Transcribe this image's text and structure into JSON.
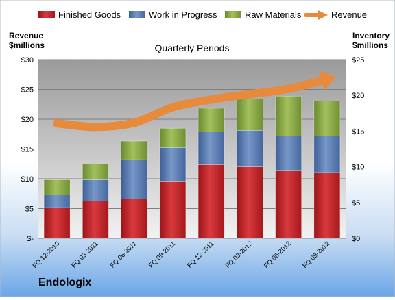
{
  "company": "Endologix",
  "colors": {
    "finished_goods": "#c0262b",
    "work_in_progress": "#5c7fb8",
    "raw_materials": "#8fac4a",
    "revenue": "#e88a3c"
  },
  "chart_data": {
    "type": "bar",
    "title": "Quarterly Periods",
    "categories": [
      "FQ 12-2010",
      "FQ 03-2011",
      "FQ 06-2011",
      "FQ 09-2011",
      "FQ 12-2011",
      "FQ 03-2012",
      "FQ 06-2012",
      "FQ 09-2012"
    ],
    "series": [
      {
        "name": "Finished Goods",
        "values": [
          4.3,
          5.2,
          5.5,
          8.0,
          10.3,
          10.0,
          9.5,
          9.2
        ]
      },
      {
        "name": "Work in Progress",
        "values": [
          1.8,
          3.0,
          5.5,
          4.7,
          4.6,
          5.1,
          4.8,
          5.1
        ]
      },
      {
        "name": "Raw Materials",
        "values": [
          2.1,
          2.2,
          2.6,
          2.7,
          3.3,
          4.4,
          5.6,
          4.9
        ]
      }
    ],
    "revenue": {
      "name": "Revenue",
      "values": [
        19.3,
        18.7,
        19.4,
        22.0,
        23.3,
        24.2,
        25.1,
        26.7
      ]
    },
    "y_left": {
      "label": [
        "Revenue",
        "$millions"
      ],
      "ylim": [
        0,
        30
      ],
      "ticks": [
        0,
        5,
        10,
        15,
        20,
        25,
        30
      ],
      "tick_labels": [
        "$-",
        "$5",
        "$10",
        "$15",
        "$20",
        "$25",
        "$30"
      ]
    },
    "y_right": {
      "label": [
        "Inventory",
        "$millions"
      ],
      "ylim": [
        0,
        25
      ],
      "ticks": [
        0,
        5,
        10,
        15,
        20,
        25
      ],
      "tick_labels": [
        "$0",
        "$5",
        "$10",
        "$15",
        "$20",
        "$25"
      ]
    },
    "legend": {
      "position": "top",
      "entries": [
        "Finished Goods",
        "Work in Progress",
        "Raw Materials",
        "Revenue"
      ]
    },
    "grid": true
  }
}
